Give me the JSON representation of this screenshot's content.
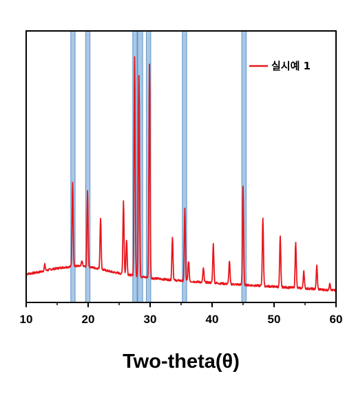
{
  "chart_data": {
    "type": "line",
    "title": "",
    "xlabel": "Two-theta(θ)",
    "ylabel": "",
    "xlim": [
      10,
      60
    ],
    "xticks": [
      10,
      20,
      30,
      40,
      50,
      60
    ],
    "xtick_labels": [
      "10",
      "20",
      "30",
      "40",
      "50",
      "60"
    ],
    "ylim": [
      0,
      100
    ],
    "yticks_visible": false,
    "grid": false,
    "legend": {
      "placement": "top-right"
    },
    "highlight_bands": [
      {
        "from": 17.2,
        "to": 17.9
      },
      {
        "from": 19.6,
        "to": 20.3
      },
      {
        "from": 27.2,
        "to": 27.9
      },
      {
        "from": 28.0,
        "to": 28.8
      },
      {
        "from": 29.4,
        "to": 30.1
      },
      {
        "from": 35.2,
        "to": 35.9
      },
      {
        "from": 44.8,
        "to": 45.5
      }
    ],
    "series": [
      {
        "name": "실시예 1",
        "color": "#e8151b",
        "baseline": [
          [
            10,
            9.5
          ],
          [
            12,
            10.3
          ],
          [
            14,
            11.5
          ],
          [
            16,
            12.3
          ],
          [
            18,
            12.8
          ],
          [
            20,
            12.6
          ],
          [
            22,
            11.6
          ],
          [
            24,
            10.3
          ],
          [
            26,
            9.4
          ],
          [
            28,
            8.6
          ],
          [
            30,
            7.9
          ],
          [
            32,
            7.4
          ],
          [
            34,
            6.9
          ],
          [
            36,
            6.6
          ],
          [
            38,
            6.2
          ],
          [
            40,
            5.9
          ],
          [
            42,
            5.5
          ],
          [
            44,
            5.2
          ],
          [
            46,
            4.9
          ],
          [
            48,
            4.6
          ],
          [
            50,
            4.3
          ],
          [
            52,
            4.0
          ],
          [
            54,
            3.7
          ],
          [
            56,
            3.4
          ],
          [
            58,
            3.0
          ],
          [
            60,
            2.7
          ]
        ],
        "peaks": [
          {
            "x": 13.0,
            "y": 13.5
          },
          {
            "x": 17.5,
            "y": 48
          },
          {
            "x": 19.0,
            "y": 15
          },
          {
            "x": 19.9,
            "y": 44
          },
          {
            "x": 22.0,
            "y": 33
          },
          {
            "x": 25.7,
            "y": 40
          },
          {
            "x": 26.2,
            "y": 24
          },
          {
            "x": 27.5,
            "y": 100
          },
          {
            "x": 28.2,
            "y": 92
          },
          {
            "x": 29.9,
            "y": 97
          },
          {
            "x": 33.6,
            "y": 25
          },
          {
            "x": 35.6,
            "y": 37
          },
          {
            "x": 36.2,
            "y": 15
          },
          {
            "x": 38.6,
            "y": 12
          },
          {
            "x": 40.2,
            "y": 22
          },
          {
            "x": 42.8,
            "y": 15
          },
          {
            "x": 45.0,
            "y": 46
          },
          {
            "x": 48.2,
            "y": 33
          },
          {
            "x": 51.0,
            "y": 25
          },
          {
            "x": 53.5,
            "y": 23
          },
          {
            "x": 54.8,
            "y": 11
          },
          {
            "x": 56.9,
            "y": 13
          },
          {
            "x": 59.0,
            "y": 6
          }
        ]
      }
    ]
  }
}
